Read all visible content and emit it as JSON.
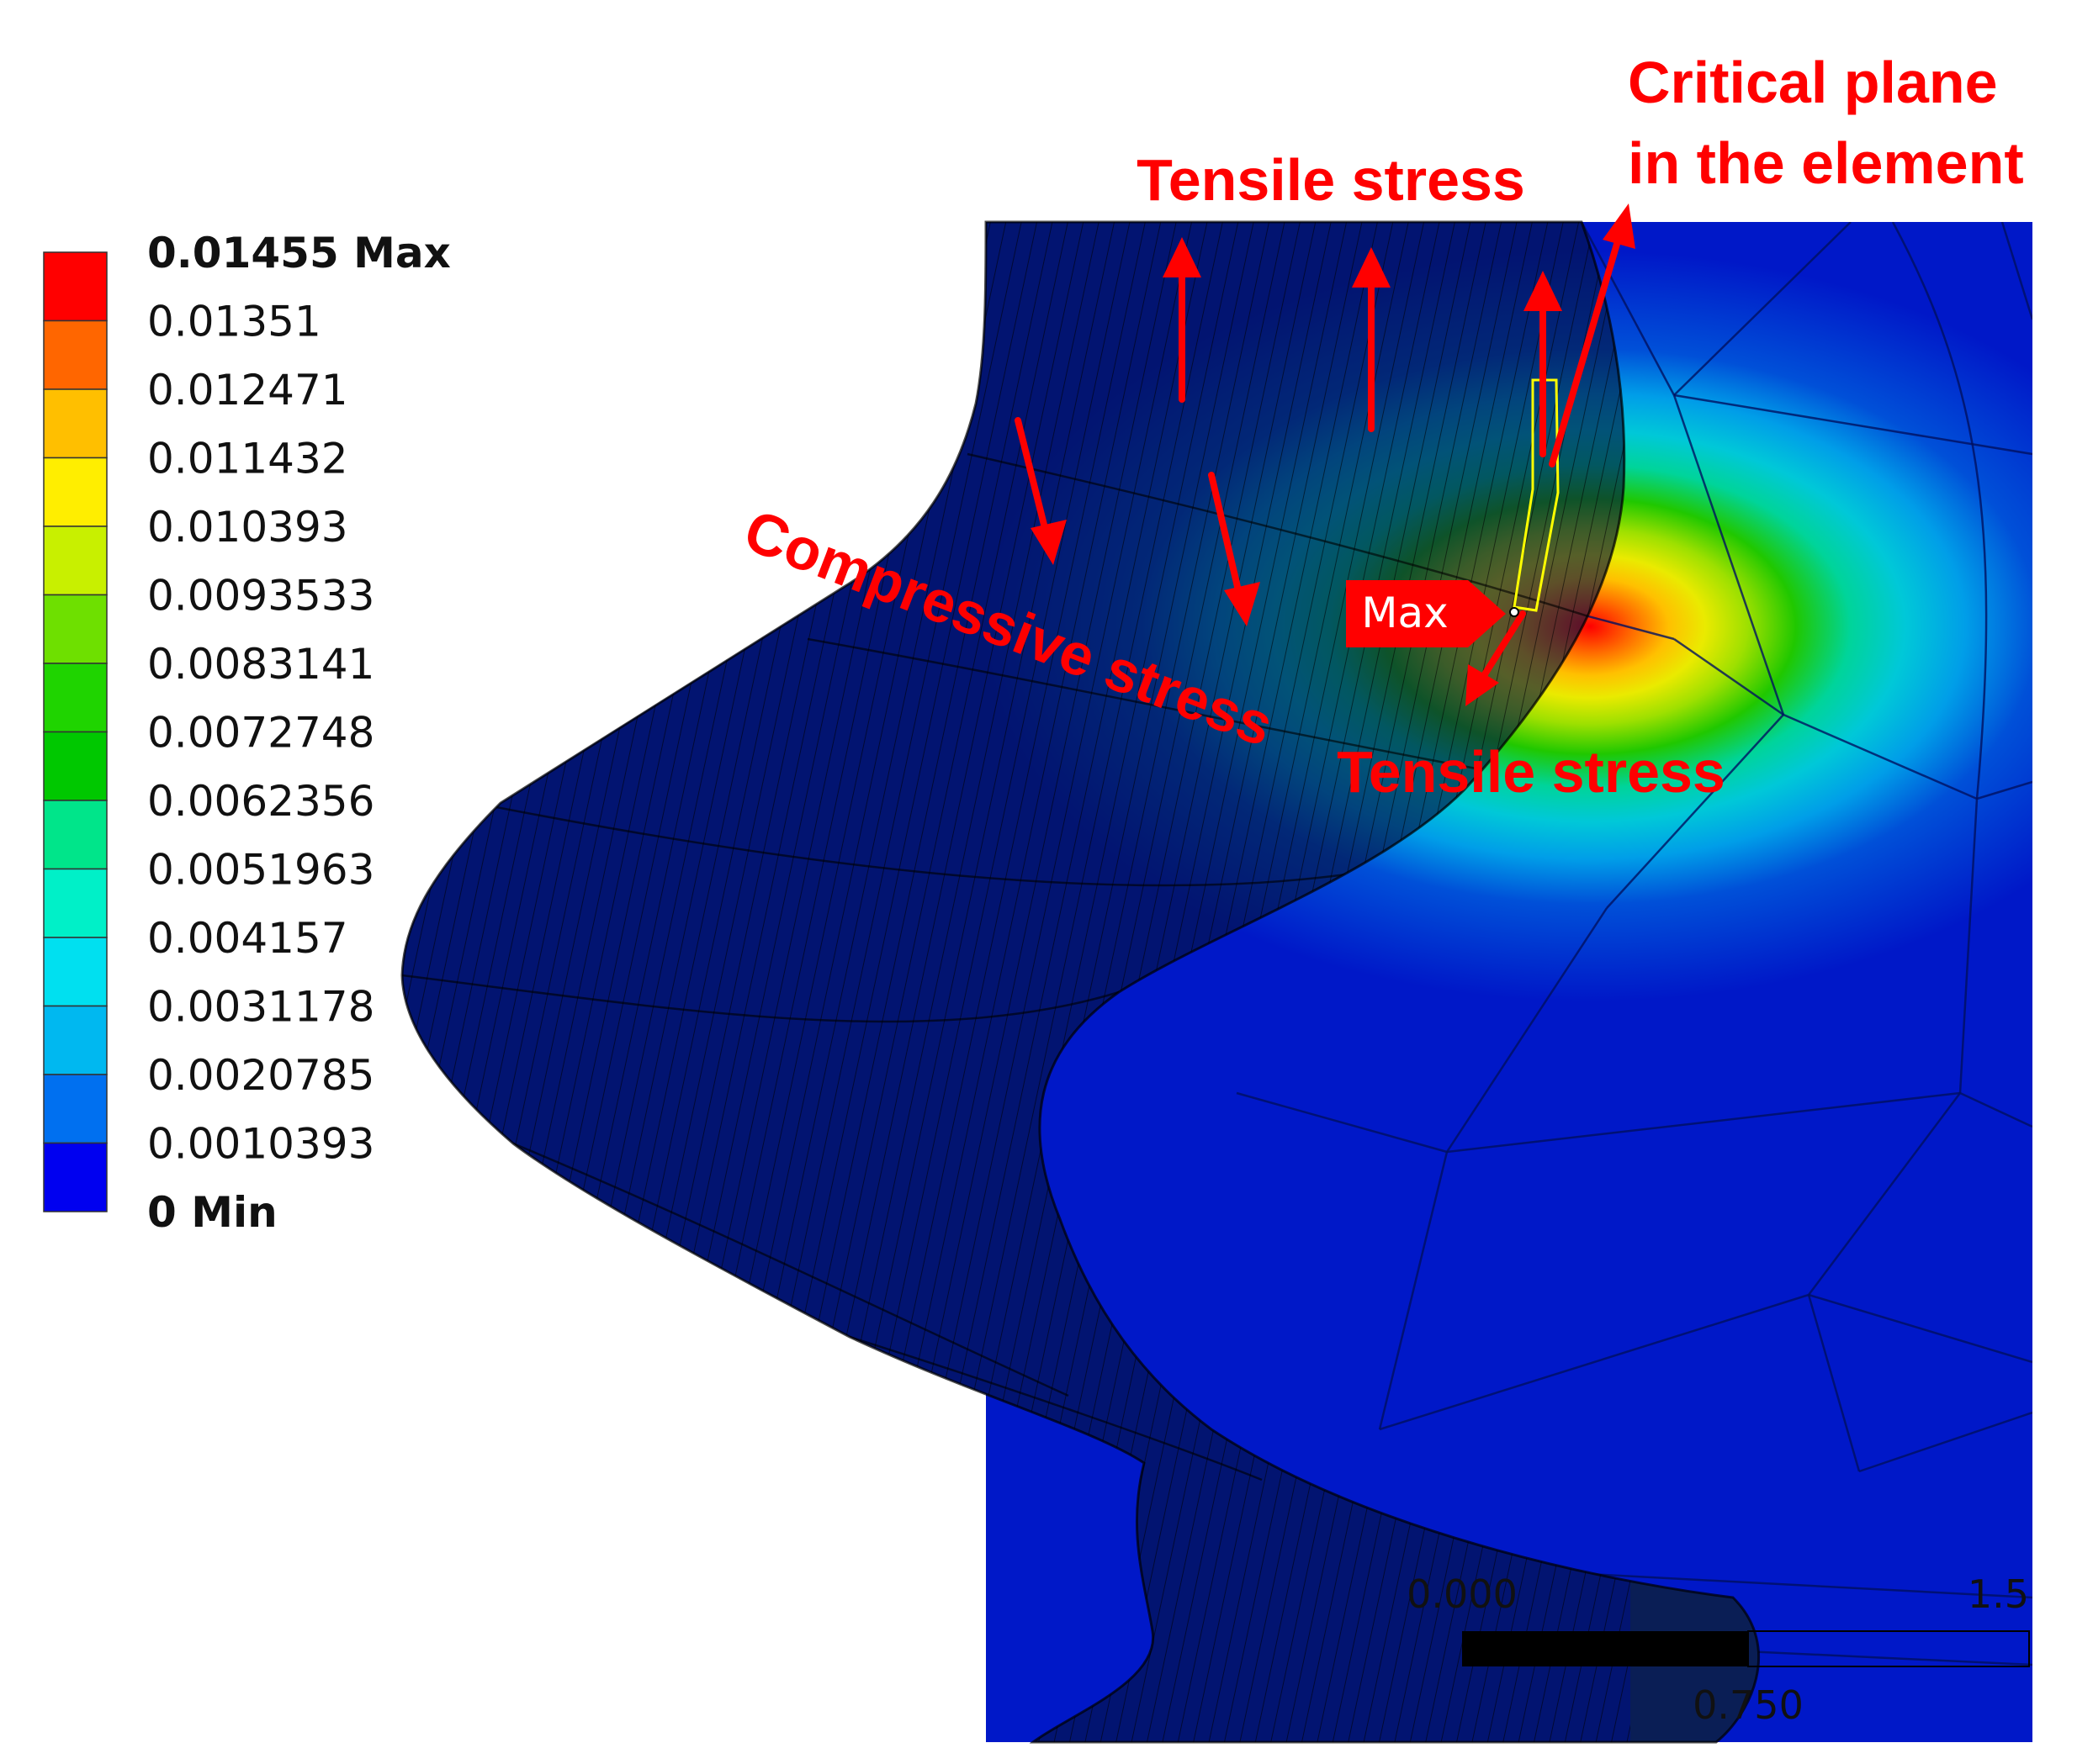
{
  "legend": {
    "colors": [
      "#ff0000",
      "#ff6600",
      "#ffbf00",
      "#ffee00",
      "#c8f000",
      "#6ee000",
      "#1fd400",
      "#00c800",
      "#00e58a",
      "#00f0c8",
      "#00e0f0",
      "#00b8f0",
      "#0070f0",
      "#0000f0"
    ],
    "labels": [
      "0.01455 Max",
      "0.01351",
      "0.012471",
      "0.011432",
      "0.010393",
      "0.0093533",
      "0.0083141",
      "0.0072748",
      "0.0062356",
      "0.0051963",
      "0.004157",
      "0.0031178",
      "0.0020785",
      "0.0010393",
      "0 Min"
    ]
  },
  "annotations": {
    "tensile_top": "Tensile stress",
    "critical_line1": "Critical plane",
    "critical_line2": "in the element",
    "compressive": "Compressive stress",
    "tensile_bottom": "Tensile stress",
    "max_tag": "Max"
  },
  "scale_bar": {
    "left_label": "0.000",
    "mid_label": "0.750",
    "right_label": "1.5"
  }
}
